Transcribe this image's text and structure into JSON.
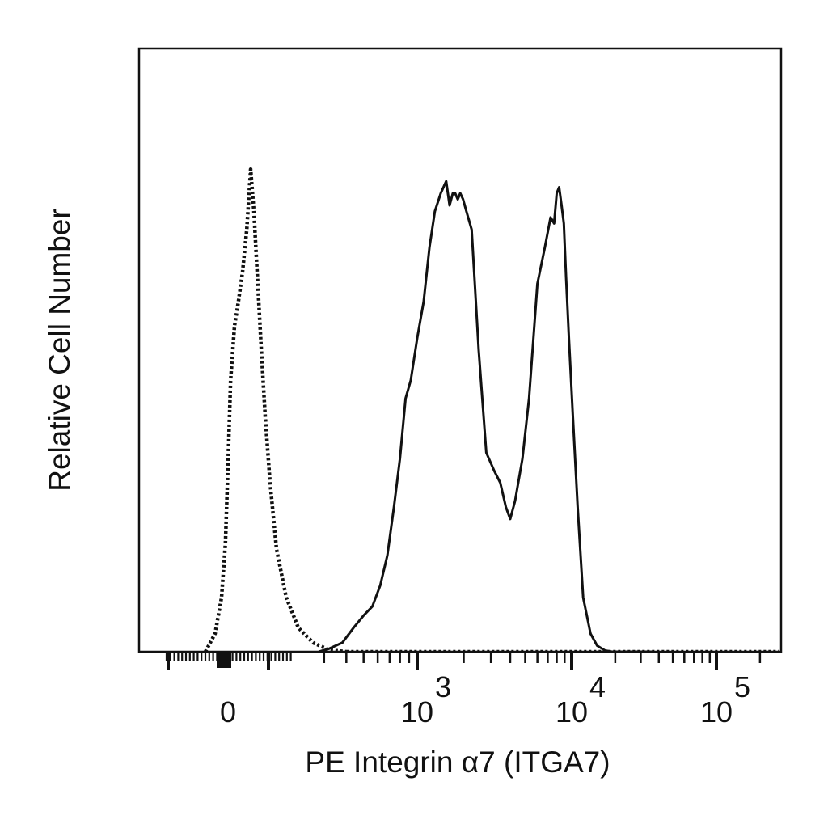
{
  "chart_data": {
    "type": "line",
    "title": "",
    "xlabel": "PE Integrin α7 (ITGA7)",
    "ylabel": "Relative Cell Number",
    "x_scale": "biexponential",
    "xlim": [
      -250,
      130000
    ],
    "ylim": [
      0,
      100
    ],
    "grid": false,
    "legend": "none",
    "x_major_ticks": [
      {
        "value": 0,
        "base": "0",
        "exp": ""
      },
      {
        "value": 1000,
        "base": "10",
        "exp": "3"
      },
      {
        "value": 10000,
        "base": "10",
        "exp": "4"
      },
      {
        "value": 100000,
        "base": "10",
        "exp": "5"
      }
    ],
    "series": [
      {
        "style": "dotted",
        "color": "#111111",
        "x": [
          -70,
          -40,
          -20,
          -8,
          0,
          8,
          20,
          32,
          45,
          58,
          70,
          80,
          92,
          103,
          115,
          130,
          150,
          180,
          215,
          260,
          320,
          400
        ],
        "y": [
          0,
          3,
          9,
          18,
          31,
          45,
          54,
          58,
          63,
          70,
          80,
          73,
          61,
          50,
          39,
          28,
          17,
          9,
          4,
          1.5,
          0.3,
          0
        ]
      },
      {
        "style": "solid",
        "color": "#111111",
        "x": [
          280,
          320,
          380,
          440,
          500,
          560,
          620,
          680,
          740,
          800,
          860,
          920,
          1000,
          1100,
          1200,
          1300,
          1420,
          1540,
          1620,
          1700,
          1760,
          1830,
          1900,
          1980,
          2080,
          2250,
          2500,
          2800,
          3150,
          3450,
          3750,
          4000,
          4300,
          4800,
          5300,
          6000,
          6700,
          7300,
          7700,
          8000,
          8300,
          8600,
          8900,
          9200,
          9600,
          10200,
          11000,
          12000,
          13500,
          15000,
          17000,
          19000,
          22000,
          26000,
          31000,
          36000
        ],
        "y": [
          0,
          0.5,
          1.5,
          4,
          6,
          7.5,
          11,
          16,
          24,
          32,
          42,
          45,
          52,
          58,
          67,
          73,
          76,
          78,
          74,
          76,
          76,
          75,
          76,
          75,
          73,
          70,
          50,
          33,
          30,
          28,
          24,
          22,
          25,
          32,
          42,
          61,
          67,
          72,
          71,
          76,
          77,
          74,
          71,
          62,
          52,
          39,
          24,
          9,
          3,
          1,
          0.2,
          0,
          0,
          0,
          0,
          0
        ]
      }
    ]
  }
}
